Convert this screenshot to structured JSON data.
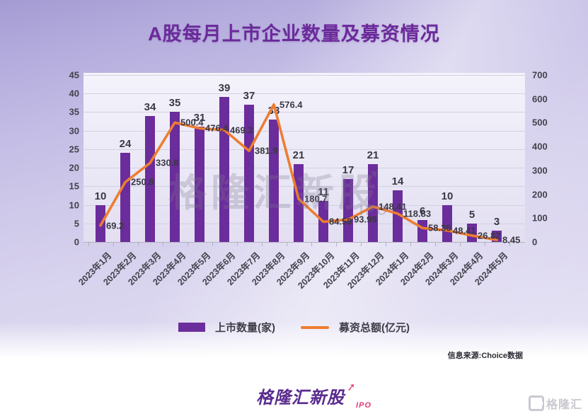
{
  "title": "A股每月上市企业数量及募资情况",
  "watermark": {
    "text": "格隆汇新股",
    "arrow": "➚",
    "sub": "IPO"
  },
  "chart_data": {
    "type": "bar",
    "subtype": "bar+line combo, dual axis",
    "title": "A股每月上市企业数量及募资情况",
    "categories": [
      "2023年1月",
      "2023年2月",
      "2023年3月",
      "2023年4月",
      "2023年5月",
      "2023年6月",
      "2023年7月",
      "2023年8月",
      "2023年9月",
      "2023年10月",
      "2023年11月",
      "2023年12月",
      "2024年1月",
      "2024年2月",
      "2024年3月",
      "2024年4月",
      "2024年5月"
    ],
    "series": [
      {
        "name": "上市数量(家)",
        "type": "bar",
        "axis": "left",
        "color": "#6b2d9b",
        "values": [
          10,
          24,
          34,
          35,
          31,
          39,
          37,
          33,
          21,
          11,
          17,
          21,
          14,
          6,
          10,
          5,
          3
        ]
      },
      {
        "name": "募资总额(亿元)",
        "type": "line",
        "axis": "right",
        "color": "#ed7d31",
        "values": [
          69.2,
          250.8,
          330.8,
          500.4,
          476.4,
          469.3,
          381.9,
          576.4,
          180.7,
          84.59,
          93.98,
          148.41,
          118.83,
          58.36,
          48.41,
          26.82,
          8.45
        ]
      }
    ],
    "left_axis": {
      "min": 0,
      "max": 45,
      "step": 5,
      "ticks": [
        "0",
        "5",
        "10",
        "15",
        "20",
        "25",
        "30",
        "35",
        "40",
        "45"
      ]
    },
    "right_axis": {
      "min": 0,
      "max": 700,
      "step": 100,
      "ticks": [
        "0",
        "100",
        "200",
        "300",
        "400",
        "500",
        "600",
        "700"
      ]
    },
    "grid": true,
    "legend_position": "bottom",
    "data_labels": true
  },
  "source_note": "信息来源:Choice数据",
  "footer": {
    "brand": "格隆汇新股",
    "brand_arrow": "➚",
    "brand_sub": "IPO",
    "corner_logo": "格隆汇"
  }
}
